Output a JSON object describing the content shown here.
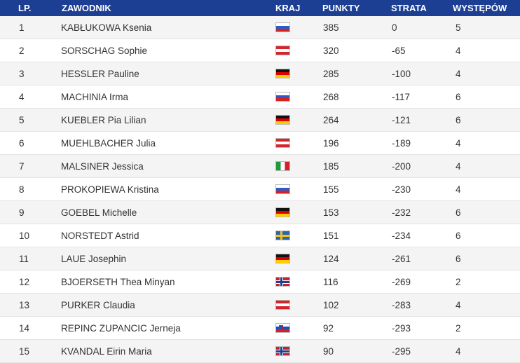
{
  "headers": {
    "lp": "LP.",
    "name": "ZAWODNIK",
    "country": "KRAJ",
    "points": "PUNKTY",
    "gap": "STRATA",
    "starts": "WYSTĘPÓW"
  },
  "colors": {
    "header_bg": "#1c3f94",
    "row_alt_bg": "#f4f4f4"
  },
  "rows": [
    {
      "lp": "1",
      "name": "KABŁUKOWA Ksenia",
      "flag": "flag-ru",
      "points": "385",
      "gap": "0",
      "starts": "5"
    },
    {
      "lp": "2",
      "name": "SORSCHAG Sophie",
      "flag": "flag-at",
      "points": "320",
      "gap": "-65",
      "starts": "4"
    },
    {
      "lp": "3",
      "name": "HESSLER Pauline",
      "flag": "flag-de",
      "points": "285",
      "gap": "-100",
      "starts": "4"
    },
    {
      "lp": "4",
      "name": "MACHINIA Irma",
      "flag": "flag-ru",
      "points": "268",
      "gap": "-117",
      "starts": "6"
    },
    {
      "lp": "5",
      "name": "KUEBLER Pia Lilian",
      "flag": "flag-de",
      "points": "264",
      "gap": "-121",
      "starts": "6"
    },
    {
      "lp": "6",
      "name": "MUEHLBACHER Julia",
      "flag": "flag-at",
      "points": "196",
      "gap": "-189",
      "starts": "4"
    },
    {
      "lp": "7",
      "name": "MALSINER Jessica",
      "flag": "flag-it",
      "points": "185",
      "gap": "-200",
      "starts": "4"
    },
    {
      "lp": "8",
      "name": "PROKOPIEWA Kristina",
      "flag": "flag-ru",
      "points": "155",
      "gap": "-230",
      "starts": "4"
    },
    {
      "lp": "9",
      "name": "GOEBEL Michelle",
      "flag": "flag-de",
      "points": "153",
      "gap": "-232",
      "starts": "6"
    },
    {
      "lp": "10",
      "name": "NORSTEDT Astrid",
      "flag": "flag-se",
      "points": "151",
      "gap": "-234",
      "starts": "6"
    },
    {
      "lp": "11",
      "name": "LAUE Josephin",
      "flag": "flag-de",
      "points": "124",
      "gap": "-261",
      "starts": "6"
    },
    {
      "lp": "12",
      "name": "BJOERSETH Thea Minyan",
      "flag": "flag-no",
      "points": "116",
      "gap": "-269",
      "starts": "2"
    },
    {
      "lp": "13",
      "name": "PURKER Claudia",
      "flag": "flag-at",
      "points": "102",
      "gap": "-283",
      "starts": "4"
    },
    {
      "lp": "14",
      "name": "REPINC ZUPANCIC Jerneja",
      "flag": "flag-si",
      "points": "92",
      "gap": "-293",
      "starts": "2"
    },
    {
      "lp": "15",
      "name": "KVANDAL Eirin Maria",
      "flag": "flag-no",
      "points": "90",
      "gap": "-295",
      "starts": "4"
    }
  ]
}
